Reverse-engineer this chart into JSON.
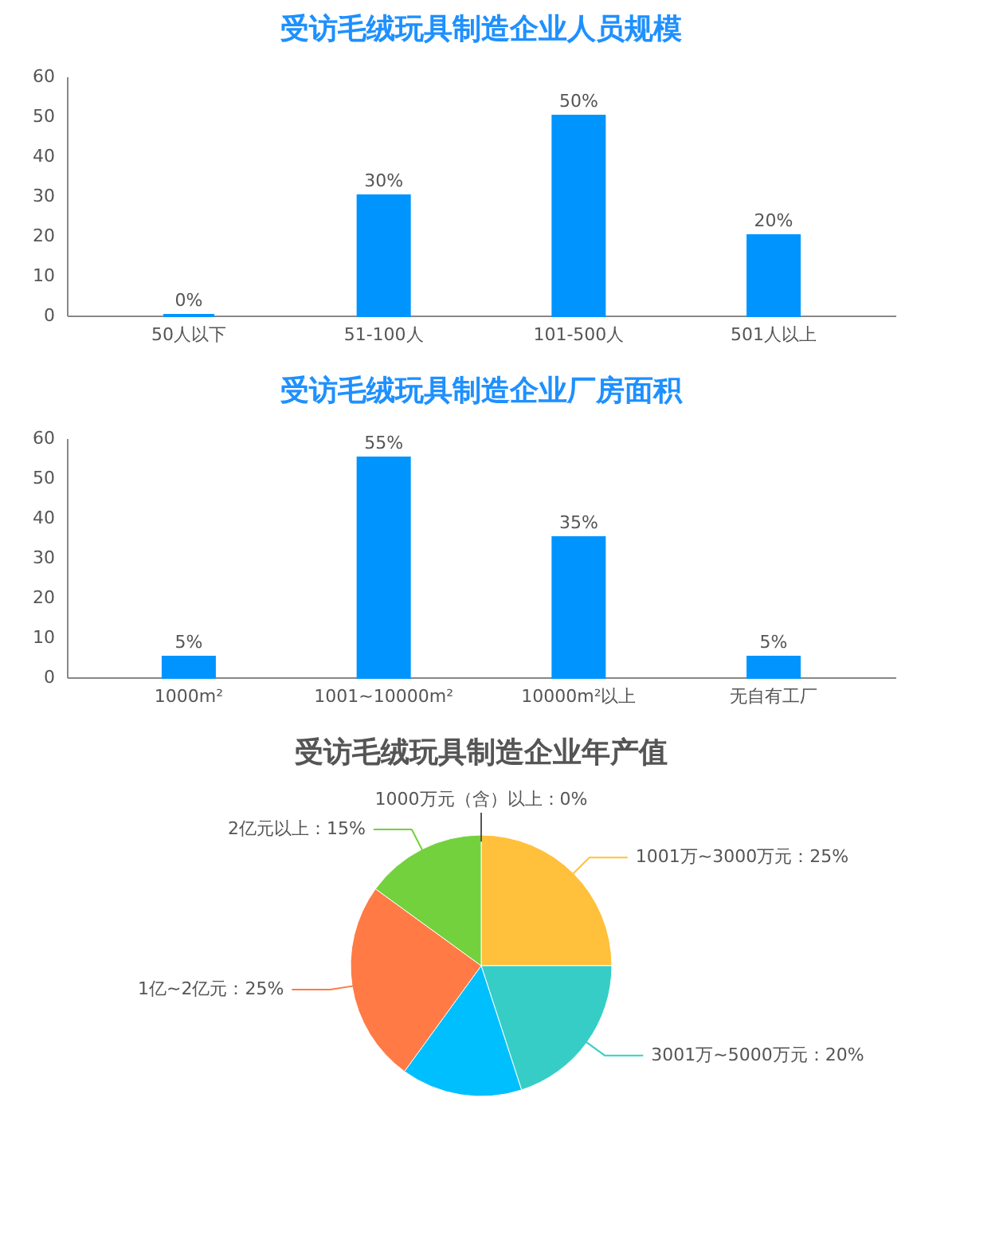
{
  "chart_data": [
    {
      "type": "bar",
      "title": "受访毛绒玩具制造企业人员规模",
      "categories": [
        "50人以下",
        "51-100人",
        "101-500人",
        "501人以上"
      ],
      "values": [
        0,
        30,
        50,
        20
      ],
      "value_labels": [
        "0%",
        "30%",
        "50%",
        "20%"
      ],
      "color": "#0094ff",
      "ylim": [
        0,
        60
      ],
      "yticks": [
        0,
        10,
        20,
        30,
        40,
        50,
        60
      ],
      "grid": false
    },
    {
      "type": "bar",
      "title": "受访毛绒玩具制造企业厂房面积",
      "categories": [
        "1000m²",
        "1001~10000m²",
        "10000m²以上",
        "无自有工厂"
      ],
      "values": [
        5,
        55,
        35,
        5
      ],
      "value_labels": [
        "5%",
        "55%",
        "35%",
        "5%"
      ],
      "color": "#0094ff",
      "ylim": [
        0,
        60
      ],
      "yticks": [
        0,
        10,
        20,
        30,
        40,
        50,
        60
      ],
      "grid": false
    },
    {
      "type": "pie",
      "title": "受访毛绒玩具制造企业年产值",
      "categories": [
        "1000万元（含）以上：0%",
        "1001万~3000万元：25%",
        "3001万~5000万元：20%",
        null,
        "1亿~2亿元：25%",
        "2亿元以上：15%"
      ],
      "values": [
        0,
        25,
        20,
        15,
        25,
        15
      ],
      "colors": [
        "#555555",
        "#ffc13b",
        "#36cdc7",
        "#00bfff",
        "#ff7a45",
        "#73d13d"
      ]
    }
  ]
}
